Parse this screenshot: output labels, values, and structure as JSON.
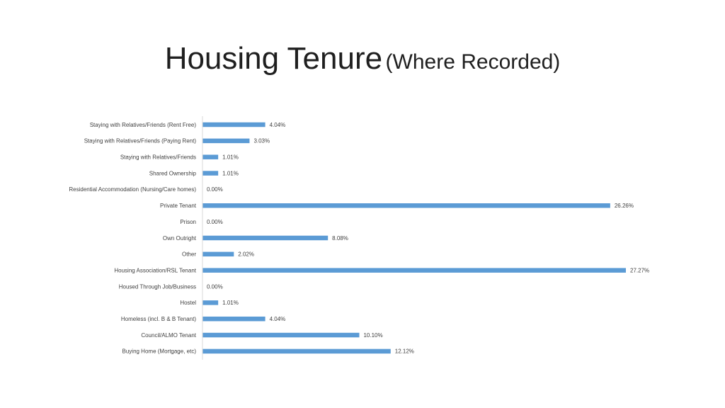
{
  "slide": {
    "title": "Housing Tenure",
    "title_suffix": "(Where Recorded)"
  },
  "chart_data": {
    "type": "bar",
    "orientation": "horizontal",
    "title": "Housing Tenure (Where Recorded)",
    "xlabel": "",
    "ylabel": "",
    "xlim": [
      0,
      27.27
    ],
    "grid": false,
    "legend": "none",
    "bar_color": "#5b9bd5",
    "value_suffix": "%",
    "categories": [
      "Staying with Relatives/Friends (Rent Free)",
      "Staying with Relatives/Friends (Paying Rent)",
      "Staying with Relatives/Friends",
      "Shared Ownership",
      "Residential Accommodation (Nursing/Care homes)",
      "Private Tenant",
      "Prison",
      "Own Outright",
      "Other",
      "Housing Association/RSL Tenant",
      "Housed Through Job/Business",
      "Hostel",
      "Homeless (incl. B & B Tenant)",
      "Council/ALMO Tenant",
      "Buying Home (Mortgage, etc)"
    ],
    "values": [
      4.04,
      3.03,
      1.01,
      1.01,
      0.0,
      26.26,
      0.0,
      8.08,
      2.02,
      27.27,
      0.0,
      1.01,
      4.04,
      10.1,
      12.12
    ],
    "data_labels": [
      "4.04%",
      "3.03%",
      "1.01%",
      "1.01%",
      "0.00%",
      "26.26%",
      "0.00%",
      "8.08%",
      "2.02%",
      "27.27%",
      "0.00%",
      "1.01%",
      "4.04%",
      "10.10%",
      "12.12%"
    ]
  }
}
